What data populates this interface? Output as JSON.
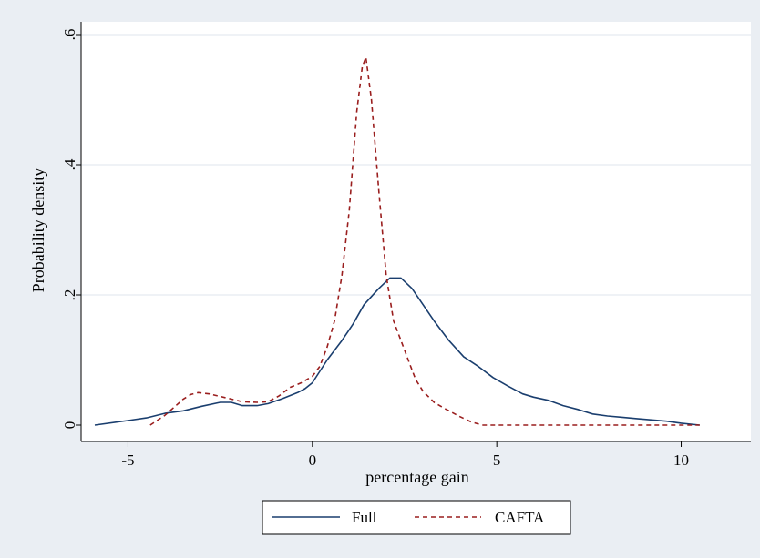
{
  "chart_data": {
    "type": "line",
    "xlabel": "percentage gain",
    "ylabel": "Probability density",
    "xlim": [
      -6,
      11
    ],
    "ylim": [
      0,
      0.6
    ],
    "xticks": [
      -5,
      0,
      5,
      10
    ],
    "xtick_labels": [
      "-5",
      "0",
      "5",
      "10"
    ],
    "yticks": [
      0,
      0.2,
      0.4,
      0.6
    ],
    "ytick_labels": [
      "0",
      ".2",
      ".4",
      ".6"
    ],
    "grid": "horizontal",
    "legend_position": "bottom",
    "series": [
      {
        "name": "Full",
        "color": "#1a3e6e",
        "dash": "solid",
        "points": [
          [
            -5.9,
            0.0
          ],
          [
            -5.0,
            0.007
          ],
          [
            -4.5,
            0.011
          ],
          [
            -4.0,
            0.018
          ],
          [
            -3.5,
            0.022
          ],
          [
            -3.0,
            0.029
          ],
          [
            -2.5,
            0.035
          ],
          [
            -2.2,
            0.035
          ],
          [
            -1.9,
            0.03
          ],
          [
            -1.5,
            0.03
          ],
          [
            -1.2,
            0.033
          ],
          [
            -0.8,
            0.041
          ],
          [
            -0.4,
            0.05
          ],
          [
            -0.2,
            0.056
          ],
          [
            0.0,
            0.065
          ],
          [
            0.4,
            0.1
          ],
          [
            0.8,
            0.13
          ],
          [
            1.1,
            0.155
          ],
          [
            1.4,
            0.185
          ],
          [
            1.8,
            0.21
          ],
          [
            2.1,
            0.226
          ],
          [
            2.4,
            0.226
          ],
          [
            2.7,
            0.21
          ],
          [
            3.0,
            0.185
          ],
          [
            3.3,
            0.16
          ],
          [
            3.7,
            0.13
          ],
          [
            4.1,
            0.105
          ],
          [
            4.5,
            0.09
          ],
          [
            4.9,
            0.073
          ],
          [
            5.3,
            0.06
          ],
          [
            5.7,
            0.048
          ],
          [
            6.0,
            0.043
          ],
          [
            6.4,
            0.038
          ],
          [
            6.8,
            0.03
          ],
          [
            7.2,
            0.024
          ],
          [
            7.6,
            0.017
          ],
          [
            8.0,
            0.014
          ],
          [
            8.4,
            0.012
          ],
          [
            8.8,
            0.01
          ],
          [
            9.2,
            0.008
          ],
          [
            9.6,
            0.006
          ],
          [
            10.0,
            0.003
          ],
          [
            10.5,
            0.0
          ]
        ]
      },
      {
        "name": "CAFTA",
        "color": "#9a1e1e",
        "dash": "dashed",
        "points": [
          [
            -4.4,
            0.0
          ],
          [
            -4.0,
            0.015
          ],
          [
            -3.7,
            0.03
          ],
          [
            -3.5,
            0.04
          ],
          [
            -3.3,
            0.047
          ],
          [
            -3.1,
            0.05
          ],
          [
            -2.8,
            0.048
          ],
          [
            -2.5,
            0.044
          ],
          [
            -2.2,
            0.04
          ],
          [
            -1.9,
            0.036
          ],
          [
            -1.5,
            0.035
          ],
          [
            -1.2,
            0.036
          ],
          [
            -0.9,
            0.045
          ],
          [
            -0.6,
            0.058
          ],
          [
            -0.3,
            0.065
          ],
          [
            0.0,
            0.075
          ],
          [
            0.2,
            0.09
          ],
          [
            0.4,
            0.12
          ],
          [
            0.6,
            0.16
          ],
          [
            0.8,
            0.23
          ],
          [
            1.0,
            0.33
          ],
          [
            1.2,
            0.48
          ],
          [
            1.35,
            0.55
          ],
          [
            1.45,
            0.565
          ],
          [
            1.6,
            0.5
          ],
          [
            1.8,
            0.36
          ],
          [
            2.0,
            0.23
          ],
          [
            2.2,
            0.16
          ],
          [
            2.4,
            0.13
          ],
          [
            2.6,
            0.1
          ],
          [
            2.8,
            0.07
          ],
          [
            3.0,
            0.052
          ],
          [
            3.3,
            0.035
          ],
          [
            3.6,
            0.025
          ],
          [
            4.0,
            0.013
          ],
          [
            4.3,
            0.005
          ],
          [
            4.6,
            0.0
          ],
          [
            5.5,
            0.0
          ],
          [
            7.0,
            0.0
          ],
          [
            8.5,
            0.0
          ],
          [
            10.5,
            0.0
          ]
        ]
      }
    ]
  }
}
